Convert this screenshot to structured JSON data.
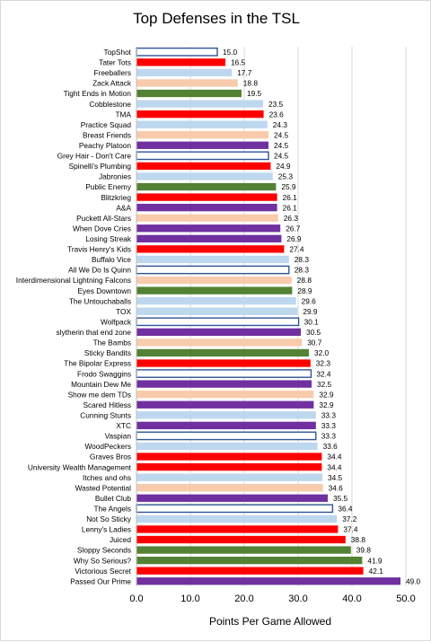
{
  "chart_data": {
    "type": "bar",
    "orientation": "horizontal",
    "title": "Top Defenses in the TSL",
    "xlabel": "Points Per Game Allowed",
    "ylabel": "",
    "xlim": [
      0,
      50
    ],
    "xticks": [
      "0.0",
      "10.0",
      "20.0",
      "30.0",
      "40.0",
      "50.0"
    ],
    "xtick_values": [
      0,
      10,
      20,
      30,
      40,
      50
    ],
    "grid": "vertical",
    "colors": {
      "blue_outline": "#2f5597",
      "red": "#ff0000",
      "light_blue": "#bdd7ee",
      "peach": "#f8cbad",
      "green": "#548235",
      "purple": "#7030a0"
    },
    "categories": [
      "TopShot",
      "Tater Tots",
      "Freeballers",
      "Zack Attack",
      "Tight Ends in Motion",
      "Cobblestone",
      "TMA",
      "Practice Squad",
      "Breast Friends",
      "Peachy Platoon",
      "Grey Hair - Don't Care",
      "Spinelli's Plumbing",
      "Jabronies",
      "Public Enemy",
      "Blitzkrieg",
      "A&A",
      "Puckett All-Stars",
      "When Dove Cries",
      "Losing Streak",
      "Travis Henry's Kids",
      "Buffalo Vice",
      "All We Do Is Quinn",
      "Interdimensional Lightning Falcons",
      "Eyes Downtown",
      "The Untouchaballs",
      "TOX",
      "Wolfpack",
      "slytherin that end zone",
      "The Bambs",
      "Sticky Bandits",
      "The Bipolar Express",
      "Frodo Swaggins",
      "Mountain Dew Me",
      "Show me dem TDs",
      "Scared Hitless",
      "Cunning Stunts",
      "XTC",
      "Vaspian",
      "WoodPeckers",
      "Graves Bros",
      "University Wealth Management",
      "Itches and ohs",
      "Wasted Potential",
      "Bullet Club",
      "The Angels",
      "Not So Sticky",
      "Lenny's Ladies",
      "Juiced",
      "Sloppy Seconds",
      "Why So Serious?",
      "Victorious Secret",
      "Passed Our Prime"
    ],
    "values": [
      15.0,
      16.5,
      17.7,
      18.8,
      19.5,
      23.5,
      23.6,
      24.3,
      24.5,
      24.5,
      24.5,
      24.9,
      25.3,
      25.9,
      26.1,
      26.1,
      26.3,
      26.7,
      26.9,
      27.4,
      28.3,
      28.3,
      28.8,
      28.9,
      29.6,
      29.9,
      30.1,
      30.5,
      30.7,
      32.0,
      32.3,
      32.4,
      32.5,
      32.9,
      32.9,
      33.3,
      33.3,
      33.3,
      33.6,
      34.4,
      34.4,
      34.5,
      34.6,
      35.5,
      36.4,
      37.2,
      37.4,
      38.8,
      39.8,
      41.9,
      42.1,
      49.0
    ],
    "data_labels": [
      "15.0",
      "16.5",
      "17.7",
      "18.8",
      "19.5",
      "23.5",
      "23.6",
      "24.3",
      "24.5",
      "24.5",
      "24.5",
      "24.9",
      "25.3",
      "25.9",
      "26.1",
      "26.1",
      "26.3",
      "26.7",
      "26.9",
      "27.4",
      "28.3",
      "28.3",
      "28.8",
      "28.9",
      "29.6",
      "29.9",
      "30.1",
      "30.5",
      "30.7",
      "32.0",
      "32.3",
      "32.4",
      "32.5",
      "32.9",
      "32.9",
      "33.3",
      "33.3",
      "33.3",
      "33.6",
      "34.4",
      "34.4",
      "34.5",
      "34.6",
      "35.5",
      "36.4",
      "37.2",
      "37.4",
      "38.8",
      "39.8",
      "41.9",
      "42.1",
      "49.0"
    ],
    "bar_colors": [
      "blue_outline",
      "red",
      "light_blue",
      "peach",
      "green",
      "light_blue",
      "red",
      "light_blue",
      "peach",
      "purple",
      "blue_outline",
      "red",
      "light_blue",
      "green",
      "red",
      "purple",
      "peach",
      "purple",
      "purple",
      "red",
      "light_blue",
      "blue_outline",
      "peach",
      "green",
      "light_blue",
      "light_blue",
      "blue_outline",
      "purple",
      "peach",
      "green",
      "red",
      "blue_outline",
      "purple",
      "peach",
      "purple",
      "light_blue",
      "purple",
      "blue_outline",
      "light_blue",
      "red",
      "red",
      "light_blue",
      "peach",
      "purple",
      "blue_outline",
      "light_blue",
      "red",
      "red",
      "green",
      "green",
      "red",
      "purple"
    ]
  }
}
